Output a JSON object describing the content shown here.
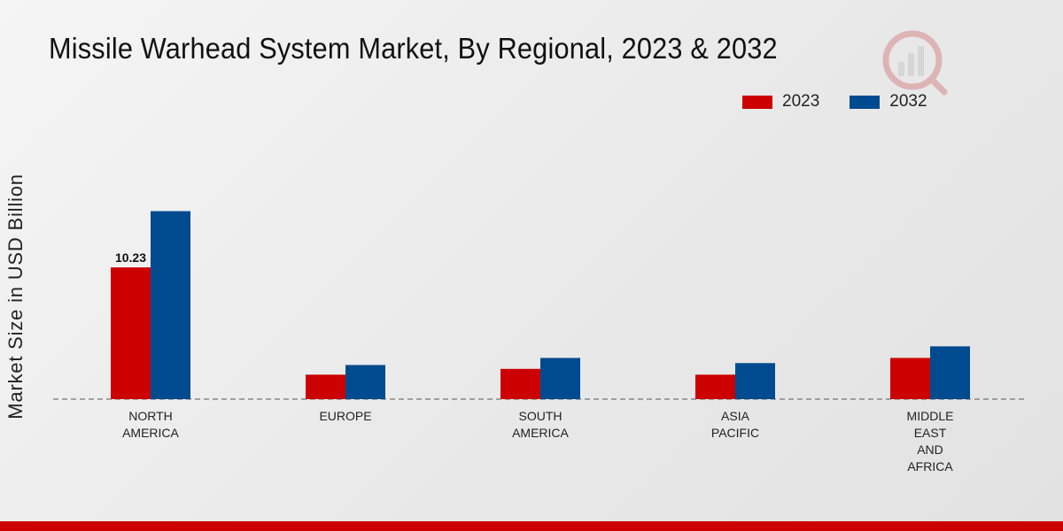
{
  "chart_data": {
    "type": "bar",
    "title": "Missile Warhead System Market, By Regional, 2023 & 2032",
    "xlabel": "",
    "ylabel": "Market Size in USD Billion",
    "categories": [
      [
        "NORTH",
        "AMERICA"
      ],
      [
        "EUROPE"
      ],
      [
        "SOUTH",
        "AMERICA"
      ],
      [
        "ASIA",
        "PACIFIC"
      ],
      [
        "MIDDLE",
        "EAST",
        "AND",
        "AFRICA"
      ]
    ],
    "series": [
      {
        "name": "2023",
        "color": "#cc0000",
        "values": [
          10.23,
          1.9,
          2.35,
          1.9,
          3.2
        ]
      },
      {
        "name": "2032",
        "color": "#004a8f",
        "values": [
          14.6,
          2.65,
          3.2,
          2.8,
          4.1
        ]
      }
    ],
    "data_labels": [
      {
        "series": 0,
        "index": 0,
        "text": "10.23"
      }
    ],
    "ylim": [
      0,
      20
    ],
    "grid": false,
    "legend_position": "top-right"
  },
  "legend": {
    "items": [
      "2023",
      "2032"
    ]
  }
}
